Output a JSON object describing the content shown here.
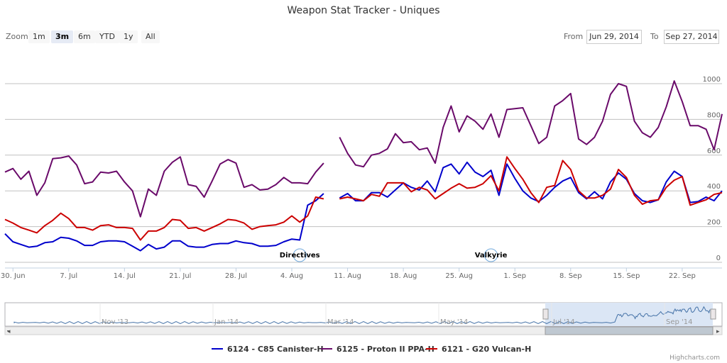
{
  "title": "Weapon Stat Tracker - Uniques",
  "zoom": {
    "label": "Zoom",
    "buttons": [
      "1m",
      "3m",
      "6m",
      "YTD",
      "1y",
      "All"
    ],
    "active": "3m"
  },
  "range": {
    "from_label": "From",
    "from": "Jun 29, 2014",
    "to_label": "To",
    "to": "Sep 27, 2014"
  },
  "flags": [
    {
      "title": "Directives",
      "date": "2014-08-05"
    },
    {
      "title": "Valkyrie",
      "date": "2014-08-29"
    }
  ],
  "navigator": {
    "labels": [
      "Nov '13",
      "Jan '14",
      "Mar '14",
      "May '14",
      "Jul '14",
      "Sep '14"
    ]
  },
  "credits": "Highcharts.com",
  "colors": {
    "series": [
      "#0000cc",
      "#6a0a6a",
      "#cc0000"
    ],
    "grid": "#c0c0c0",
    "navigator_fill": "#dbe6f5"
  },
  "chart_data": {
    "type": "line",
    "title": "Weapon Stat Tracker - Uniques",
    "x_start": "2014-06-29",
    "x_step_days": 1,
    "x_tick_labels": [
      "30. Jun",
      "7. Jul",
      "14. Jul",
      "21. Jul",
      "28. Jul",
      "4. Aug",
      "11. Aug",
      "18. Aug",
      "25. Aug",
      "1. Sep",
      "8. Sep",
      "15. Sep",
      "22. Sep"
    ],
    "ylim": [
      0,
      1000
    ],
    "y_ticks": [
      0,
      200,
      400,
      600,
      800,
      1000
    ],
    "y_axis_side": "right",
    "grid": true,
    "legend_position": "bottom",
    "series": [
      {
        "name": "6124 - C85 Canister-H",
        "values": [
          160,
          115,
          100,
          85,
          90,
          110,
          115,
          140,
          135,
          120,
          95,
          95,
          115,
          120,
          120,
          115,
          90,
          65,
          100,
          75,
          85,
          120,
          120,
          90,
          85,
          85,
          100,
          105,
          105,
          120,
          110,
          105,
          90,
          90,
          95,
          115,
          130,
          125,
          320,
          345,
          385,
          null,
          360,
          385,
          345,
          345,
          390,
          390,
          365,
          405,
          445,
          420,
          405,
          455,
          395,
          530,
          550,
          495,
          560,
          505,
          480,
          515,
          375,
          550,
          470,
          400,
          360,
          340,
          375,
          420,
          455,
          475,
          390,
          355,
          395,
          355,
          450,
          500,
          465,
          385,
          345,
          335,
          350,
          450,
          510,
          480,
          335,
          340,
          365,
          345,
          400
        ]
      },
      {
        "name": "6125 - Proton II PPA-H",
        "values": [
          505,
          525,
          465,
          510,
          375,
          445,
          580,
          585,
          595,
          545,
          440,
          450,
          505,
          500,
          510,
          450,
          400,
          255,
          410,
          375,
          510,
          560,
          590,
          435,
          425,
          365,
          455,
          550,
          575,
          555,
          420,
          435,
          405,
          410,
          435,
          475,
          445,
          445,
          440,
          505,
          555,
          null,
          700,
          610,
          545,
          535,
          600,
          610,
          635,
          720,
          670,
          675,
          630,
          640,
          555,
          755,
          875,
          730,
          820,
          790,
          745,
          830,
          700,
          855,
          860,
          865,
          765,
          665,
          700,
          875,
          905,
          945,
          690,
          660,
          700,
          790,
          940,
          1000,
          985,
          790,
          725,
          700,
          755,
          870,
          1015,
          900,
          765,
          765,
          745,
          630,
          830
        ]
      },
      {
        "name": "6121 - G20 Vulcan-H",
        "values": [
          240,
          220,
          195,
          180,
          165,
          205,
          235,
          275,
          245,
          195,
          195,
          180,
          205,
          210,
          195,
          195,
          190,
          125,
          175,
          175,
          195,
          240,
          235,
          190,
          195,
          175,
          195,
          215,
          240,
          235,
          220,
          185,
          200,
          205,
          210,
          225,
          260,
          225,
          260,
          365,
          355,
          null,
          355,
          365,
          355,
          345,
          380,
          370,
          445,
          445,
          445,
          395,
          420,
          405,
          355,
          385,
          415,
          440,
          415,
          420,
          440,
          485,
          400,
          590,
          525,
          465,
          390,
          335,
          420,
          430,
          570,
          520,
          400,
          360,
          360,
          375,
          410,
          520,
          475,
          375,
          325,
          345,
          350,
          420,
          460,
          480,
          320,
          335,
          350,
          380,
          390
        ]
      }
    ]
  }
}
